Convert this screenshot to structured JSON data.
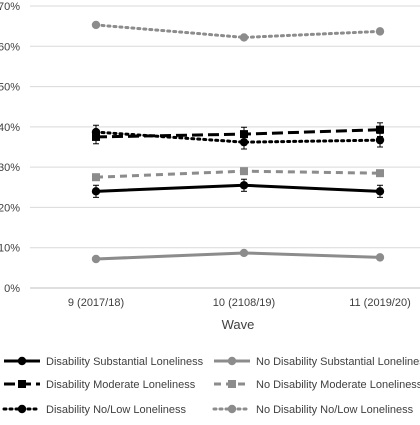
{
  "chart_data": {
    "type": "line",
    "title": "",
    "xlabel": "Wave",
    "ylabel": "",
    "x": [
      "9 (2017/18)",
      "10 (2108/19)",
      "11 (2019/20)"
    ],
    "ylim": [
      0,
      70
    ],
    "yticks": [
      "0%",
      "10%",
      "20%",
      "30%",
      "40%",
      "50%",
      "60%",
      "70%"
    ],
    "grid": "horizontal",
    "legend_position": "bottom",
    "series": [
      {
        "name": "Disability Substantial Loneliness",
        "values": [
          24,
          25.5,
          24
        ],
        "error": [
          1.5,
          1.5,
          1.5
        ],
        "color": "#000000",
        "dash": "solid",
        "marker": "circle"
      },
      {
        "name": "No Disability Substantial Loneliness",
        "values": [
          7.2,
          8.7,
          7.6
        ],
        "error": [
          0.5,
          0.6,
          0.6
        ],
        "color": "#8c8c8c",
        "dash": "solid",
        "marker": "circle"
      },
      {
        "name": "Disability Moderate Loneliness",
        "values": [
          37.5,
          38.2,
          39.3
        ],
        "error": [
          1.7,
          1.7,
          1.7
        ],
        "color": "#000000",
        "dash": "long-dash",
        "marker": "square"
      },
      {
        "name": "No Disability Moderate Loneliness",
        "values": [
          27.5,
          29,
          28.5
        ],
        "error": [
          0.6,
          0.6,
          0.6
        ],
        "color": "#8c8c8c",
        "dash": "dash",
        "marker": "square"
      },
      {
        "name": "Disability No/Low Loneliness",
        "values": [
          38.7,
          36.2,
          36.7
        ],
        "error": [
          1.7,
          1.7,
          1.7
        ],
        "color": "#000000",
        "dash": "dot",
        "marker": "circle"
      },
      {
        "name": "No Disability No/Low Loneliness",
        "values": [
          65.3,
          62.2,
          63.7
        ],
        "error": [
          0.6,
          0.6,
          0.6
        ],
        "color": "#8c8c8c",
        "dash": "dot",
        "marker": "circle"
      }
    ]
  }
}
